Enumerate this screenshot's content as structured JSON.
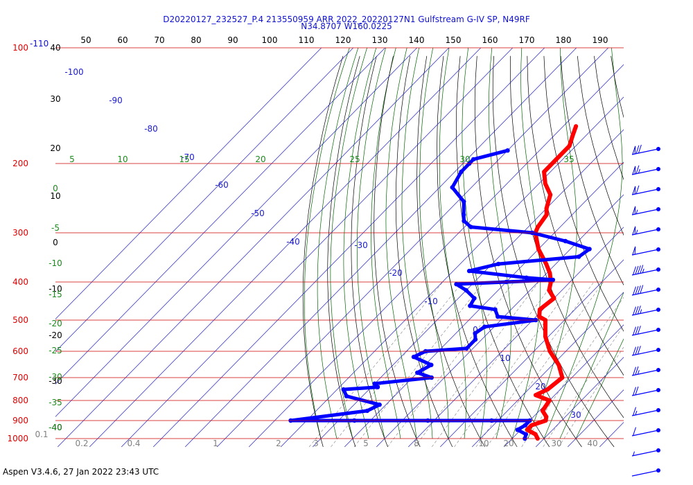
{
  "chart_data": {
    "type": "skew-t",
    "title": "D20220127_232527_P.4 213550959 ARR 2022_20220127N1 Gulfstream G-IV SP, N49RF",
    "subtitle": "N34.8707 W160.0225",
    "footer": "Aspen V3.4.6, 27 Jan 2022  23:43 UTC",
    "top_axis": {
      "ticks": [
        "50",
        "60",
        "70",
        "80",
        "90",
        "100",
        "110",
        "120",
        "130",
        "140",
        "150",
        "160",
        "170",
        "180",
        "190"
      ],
      "values": [
        50,
        60,
        70,
        80,
        90,
        100,
        110,
        120,
        130,
        140,
        150,
        160,
        170,
        180,
        190
      ]
    },
    "pressure_levels": [
      {
        "hpa": 100,
        "label": "100"
      },
      {
        "hpa": 200,
        "label": "200"
      },
      {
        "hpa": 300,
        "label": "300"
      },
      {
        "hpa": 400,
        "label": "400"
      },
      {
        "hpa": 500,
        "label": "500"
      },
      {
        "hpa": 600,
        "label": "600"
      },
      {
        "hpa": 700,
        "label": "700"
      },
      {
        "hpa": 800,
        "label": "800"
      },
      {
        "hpa": 900,
        "label": "900"
      },
      {
        "hpa": 1000,
        "label": "1000"
      }
    ],
    "top_level_extra_label": "-110",
    "height_labels": [
      "40",
      "30",
      "20",
      "10",
      "0",
      "-10",
      "-20",
      "-30",
      "-40"
    ],
    "height_values": [
      40,
      30,
      20,
      10,
      0,
      -10,
      -20,
      -30,
      -40
    ],
    "isotherm_labels": [
      "-100",
      "-90",
      "-80",
      "-70",
      "-60",
      "-50",
      "-40",
      "-30",
      "-20",
      "-10",
      "0",
      "10",
      "20",
      "30"
    ],
    "isotherm_values": [
      -100,
      -90,
      -80,
      -70,
      -60,
      -50,
      -40,
      -30,
      -20,
      -10,
      0,
      10,
      20,
      30
    ],
    "dry_adiabat_labels": [
      "5",
      "10",
      "15",
      "20",
      "25",
      "30",
      "35"
    ],
    "dry_adiabat_values": [
      5,
      10,
      15,
      20,
      25,
      30,
      35
    ],
    "left_green_labels": [
      "0",
      "-5",
      "-10",
      "-15",
      "-20",
      "-25",
      "-30",
      "-35",
      "-40"
    ],
    "left_green_values": [
      0,
      -5,
      -10,
      -15,
      -20,
      -25,
      -30,
      -35,
      -40
    ],
    "mixing_ratio_labels": [
      "0.1",
      "0.2",
      "0.4",
      "1",
      "2",
      "3",
      "5",
      "8",
      "10",
      "20",
      "30",
      "40"
    ],
    "mixing_ratio_values": [
      0.1,
      0.2,
      0.4,
      1,
      2,
      3,
      5,
      8,
      10,
      20,
      30,
      40
    ],
    "series": [
      {
        "name": "",
        "color": "#ff0000",
        "points": [
          [
            1000,
            28
          ],
          [
            975,
            26
          ],
          [
            950,
            22
          ],
          [
            925,
            22
          ],
          [
            900,
            25
          ],
          [
            880,
            24
          ],
          [
            850,
            21
          ],
          [
            800,
            20
          ],
          [
            775,
            14
          ],
          [
            750,
            16
          ],
          [
            700,
            17
          ],
          [
            650,
            12
          ],
          [
            600,
            5
          ],
          [
            550,
            -1
          ],
          [
            500,
            -6
          ],
          [
            490,
            -9
          ],
          [
            470,
            -11
          ],
          [
            440,
            -10
          ],
          [
            420,
            -14
          ],
          [
            400,
            -16
          ],
          [
            380,
            -19
          ],
          [
            360,
            -23
          ],
          [
            330,
            -30
          ],
          [
            300,
            -36
          ],
          [
            290,
            -37
          ],
          [
            270,
            -38
          ],
          [
            260,
            -40
          ],
          [
            240,
            -43
          ],
          [
            225,
            -48
          ],
          [
            210,
            -52
          ],
          [
            195,
            -52
          ],
          [
            180,
            -52
          ],
          [
            170,
            -54
          ],
          [
            160,
            -56
          ]
        ]
      },
      {
        "name": "",
        "color": "#0000ff",
        "points": [
          [
            1000,
            24
          ],
          [
            975,
            23
          ],
          [
            950,
            19
          ],
          [
            925,
            20
          ],
          [
            900,
            20
          ],
          [
            900,
            8
          ],
          [
            900,
            -12
          ],
          [
            900,
            -35
          ],
          [
            900,
            -55
          ],
          [
            850,
            -34
          ],
          [
            820,
            -32
          ],
          [
            780,
            -45
          ],
          [
            750,
            -48
          ],
          [
            740,
            -38
          ],
          [
            725,
            -40
          ],
          [
            700,
            -24
          ],
          [
            680,
            -30
          ],
          [
            650,
            -28
          ],
          [
            620,
            -36
          ],
          [
            600,
            -34
          ],
          [
            590,
            -22
          ],
          [
            560,
            -22
          ],
          [
            540,
            -24
          ],
          [
            520,
            -23
          ],
          [
            500,
            -9
          ],
          [
            490,
            -22
          ],
          [
            470,
            -25
          ],
          [
            460,
            -34
          ],
          [
            440,
            -35
          ],
          [
            420,
            -40
          ],
          [
            405,
            -45
          ],
          [
            400,
            -30
          ],
          [
            395,
            -16
          ],
          [
            390,
            -25
          ],
          [
            375,
            -45
          ],
          [
            360,
            -38
          ],
          [
            345,
            -15
          ],
          [
            330,
            -14
          ],
          [
            315,
            -24
          ],
          [
            300,
            -37
          ],
          [
            290,
            -58
          ],
          [
            280,
            -62
          ],
          [
            270,
            -64
          ],
          [
            250,
            -68
          ],
          [
            230,
            -76
          ],
          [
            210,
            -78
          ],
          [
            200,
            -78
          ],
          [
            195,
            -78
          ],
          [
            185,
            -70
          ]
        ]
      }
    ],
    "wind_barbs": [
      {
        "hpa": 200,
        "speed_kt": 70
      },
      {
        "hpa": 250,
        "speed_kt": 65
      },
      {
        "hpa": 300,
        "speed_kt": 60
      },
      {
        "hpa": 350,
        "speed_kt": 55
      },
      {
        "hpa": 400,
        "speed_kt": 55
      },
      {
        "hpa": 450,
        "speed_kt": 50
      },
      {
        "hpa": 500,
        "speed_kt": 45
      },
      {
        "hpa": 550,
        "speed_kt": 40
      },
      {
        "hpa": 600,
        "speed_kt": 35
      },
      {
        "hpa": 650,
        "speed_kt": 30
      },
      {
        "hpa": 700,
        "speed_kt": 30
      },
      {
        "hpa": 750,
        "speed_kt": 25
      },
      {
        "hpa": 800,
        "speed_kt": 20
      },
      {
        "hpa": 850,
        "speed_kt": 15
      },
      {
        "hpa": 900,
        "speed_kt": 10
      },
      {
        "hpa": 950,
        "speed_kt": 5
      },
      {
        "hpa": 1000,
        "speed_kt": 0
      }
    ],
    "colors": {
      "pressure_lines": "#cc0000",
      "isotherms": "#2020c0",
      "dry_adiabats": "#000000",
      "moist_adiabats": "#006400",
      "mixing_ratio": "#808080",
      "temperature": "#ff0000",
      "dewpoint": "#0000ff"
    }
  }
}
